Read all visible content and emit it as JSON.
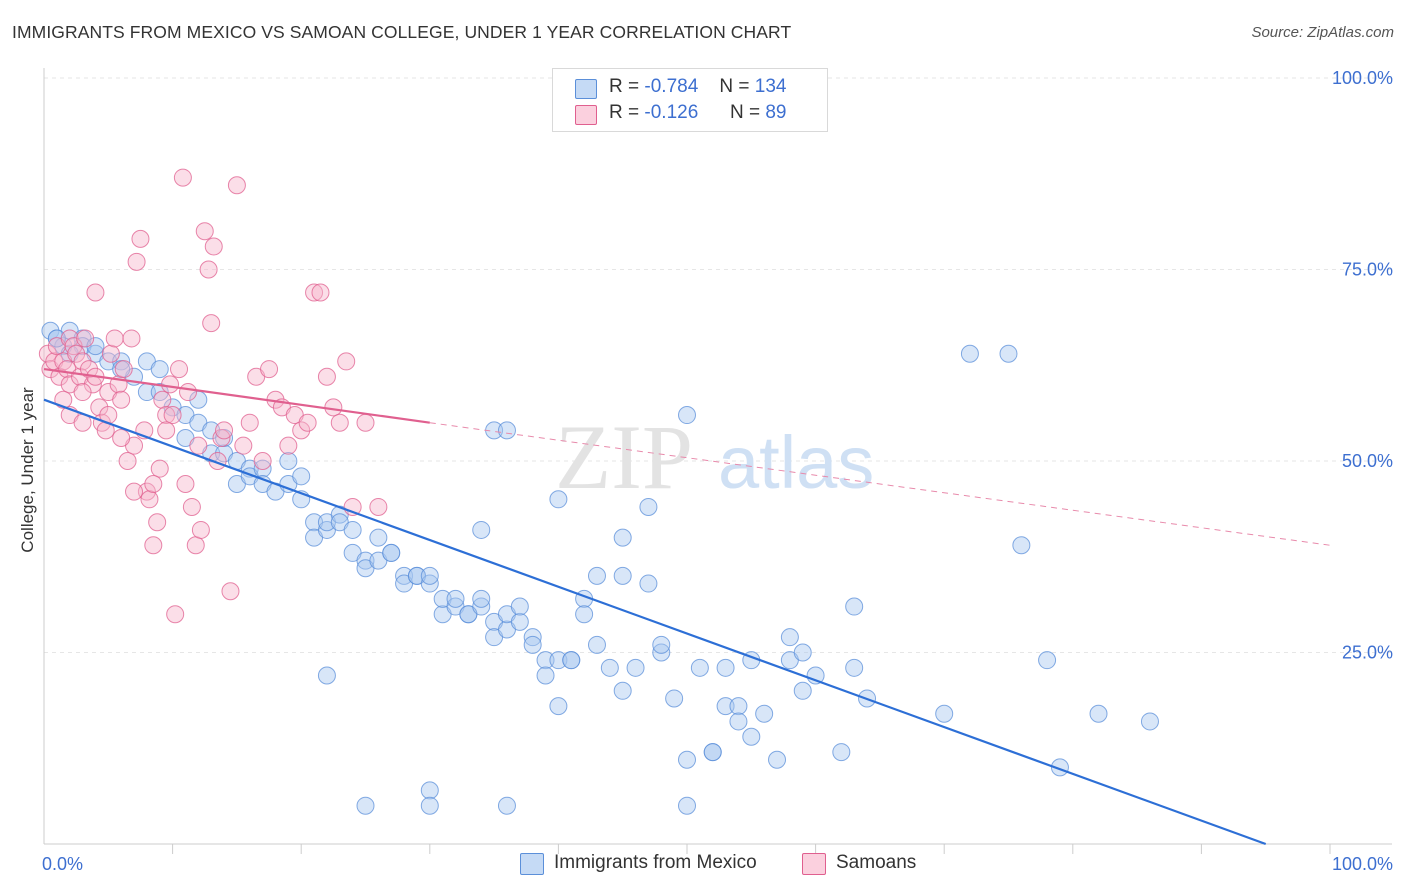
{
  "header": {
    "title": "IMMIGRANTS FROM MEXICO VS SAMOAN COLLEGE, UNDER 1 YEAR CORRELATION CHART",
    "source": "Source: ZipAtlas.com"
  },
  "watermark": {
    "zip": "ZIP",
    "atlas": "atlas"
  },
  "legend": {
    "rows": [
      {
        "r_label": "R =",
        "r_value": "-0.784",
        "n_label": "N =",
        "n_value": "134",
        "color": "#a8c8f0"
      },
      {
        "r_label": "R =",
        "r_value": "-0.126",
        "n_label": "N =",
        "n_value": "89",
        "color": "#f7b6cb"
      }
    ]
  },
  "chart_data": {
    "type": "scatter",
    "title": "IMMIGRANTS FROM MEXICO VS SAMOAN COLLEGE, UNDER 1 YEAR CORRELATION CHART",
    "xlabel": "",
    "ylabel": "College, Under 1 year",
    "xlim": [
      0,
      100
    ],
    "ylim": [
      0,
      100
    ],
    "x_tick_labels": [
      "0.0%",
      "100.0%"
    ],
    "y_tick_labels": [
      "25.0%",
      "50.0%",
      "75.0%",
      "100.0%"
    ],
    "y_ticks": [
      25,
      50,
      75,
      100
    ],
    "grid": true,
    "legend_position": "bottom",
    "series": [
      {
        "name": "Immigrants from Mexico",
        "color": "#5b8fd9",
        "fill": "#a8c8f0",
        "trend": {
          "x": [
            0,
            95
          ],
          "y": [
            58,
            0
          ],
          "dashed_to": null
        },
        "points": [
          [
            0.5,
            67
          ],
          [
            1,
            66
          ],
          [
            1.5,
            65
          ],
          [
            2,
            67
          ],
          [
            3,
            66
          ],
          [
            3,
            65
          ],
          [
            4,
            64
          ],
          [
            5,
            63
          ],
          [
            6,
            63
          ],
          [
            7,
            61
          ],
          [
            8,
            59
          ],
          [
            8,
            63
          ],
          [
            9,
            62
          ],
          [
            9,
            59
          ],
          [
            10,
            57
          ],
          [
            11,
            53
          ],
          [
            11,
            56
          ],
          [
            12,
            55
          ],
          [
            12,
            58
          ],
          [
            13,
            51
          ],
          [
            13,
            54
          ],
          [
            14,
            51
          ],
          [
            14,
            53
          ],
          [
            15,
            50
          ],
          [
            15,
            47
          ],
          [
            16,
            49
          ],
          [
            16,
            48
          ],
          [
            17,
            49
          ],
          [
            17,
            47
          ],
          [
            18,
            46
          ],
          [
            19,
            50
          ],
          [
            19,
            47
          ],
          [
            20,
            45
          ],
          [
            20,
            48
          ],
          [
            21,
            42
          ],
          [
            21,
            40
          ],
          [
            22,
            41
          ],
          [
            22,
            42
          ],
          [
            23,
            43
          ],
          [
            23,
            42
          ],
          [
            24,
            41
          ],
          [
            24,
            38
          ],
          [
            25,
            37
          ],
          [
            25,
            36
          ],
          [
            26,
            40
          ],
          [
            26,
            37
          ],
          [
            27,
            38
          ],
          [
            27,
            38
          ],
          [
            28,
            35
          ],
          [
            28,
            34
          ],
          [
            29,
            35
          ],
          [
            29,
            35
          ],
          [
            30,
            34
          ],
          [
            30,
            35
          ],
          [
            31,
            30
          ],
          [
            31,
            32
          ],
          [
            32,
            31
          ],
          [
            32,
            32
          ],
          [
            33,
            30
          ],
          [
            33,
            30
          ],
          [
            34,
            31
          ],
          [
            34,
            32
          ],
          [
            35,
            29
          ],
          [
            35,
            27
          ],
          [
            36,
            28
          ],
          [
            36,
            30
          ],
          [
            37,
            29
          ],
          [
            37,
            31
          ],
          [
            38,
            27
          ],
          [
            38,
            26
          ],
          [
            39,
            24
          ],
          [
            39,
            22
          ],
          [
            40,
            24
          ],
          [
            40,
            18
          ],
          [
            41,
            24
          ],
          [
            41,
            24
          ],
          [
            42,
            32
          ],
          [
            42,
            30
          ],
          [
            43,
            26
          ],
          [
            43,
            35
          ],
          [
            44,
            23
          ],
          [
            45,
            20
          ],
          [
            45,
            35
          ],
          [
            46,
            23
          ],
          [
            47,
            34
          ],
          [
            48,
            25
          ],
          [
            48,
            26
          ],
          [
            49,
            19
          ],
          [
            50,
            11
          ],
          [
            50,
            5
          ],
          [
            51,
            23
          ],
          [
            52,
            12
          ],
          [
            52,
            12
          ],
          [
            53,
            18
          ],
          [
            53,
            23
          ],
          [
            54,
            18
          ],
          [
            54,
            16
          ],
          [
            55,
            24
          ],
          [
            55,
            14
          ],
          [
            56,
            17
          ],
          [
            57,
            11
          ],
          [
            58,
            24
          ],
          [
            58,
            27
          ],
          [
            59,
            20
          ],
          [
            59,
            25
          ],
          [
            60,
            22
          ],
          [
            62,
            12
          ],
          [
            63,
            31
          ],
          [
            63,
            23
          ],
          [
            64,
            19
          ],
          [
            70,
            17
          ],
          [
            72,
            64
          ],
          [
            75,
            64
          ],
          [
            76,
            39
          ],
          [
            78,
            24
          ],
          [
            79,
            10
          ],
          [
            82,
            17
          ],
          [
            86,
            16
          ],
          [
            47,
            44
          ],
          [
            40,
            45
          ],
          [
            45,
            40
          ],
          [
            35,
            54
          ],
          [
            34,
            41
          ],
          [
            22,
            22
          ],
          [
            25,
            5
          ],
          [
            30,
            7
          ],
          [
            36,
            5
          ],
          [
            30,
            5
          ],
          [
            50,
            56
          ],
          [
            36,
            54
          ],
          [
            1,
            66
          ],
          [
            2,
            64
          ],
          [
            4,
            65
          ],
          [
            6,
            62
          ]
        ]
      },
      {
        "name": "Samoans",
        "color": "#e05f8f",
        "fill": "#f7b6cb",
        "trend": {
          "x": [
            0,
            30
          ],
          "y": [
            62,
            55
          ],
          "dashed_to": [
            100,
            39
          ]
        },
        "points": [
          [
            0.3,
            64
          ],
          [
            0.5,
            62
          ],
          [
            0.8,
            63
          ],
          [
            1,
            65
          ],
          [
            1.2,
            61
          ],
          [
            1.5,
            63
          ],
          [
            1.8,
            62
          ],
          [
            2,
            60
          ],
          [
            2,
            66
          ],
          [
            2.3,
            65
          ],
          [
            2.5,
            64
          ],
          [
            2.8,
            61
          ],
          [
            3,
            63
          ],
          [
            3.2,
            66
          ],
          [
            3.5,
            62
          ],
          [
            3.8,
            60
          ],
          [
            4,
            61
          ],
          [
            4.3,
            57
          ],
          [
            4.5,
            55
          ],
          [
            4.8,
            54
          ],
          [
            5,
            59
          ],
          [
            5.2,
            64
          ],
          [
            5.5,
            66
          ],
          [
            5.8,
            60
          ],
          [
            6,
            58
          ],
          [
            6.2,
            62
          ],
          [
            6.5,
            50
          ],
          [
            6.8,
            66
          ],
          [
            7,
            52
          ],
          [
            7.2,
            76
          ],
          [
            7.5,
            79
          ],
          [
            7.8,
            54
          ],
          [
            8,
            46
          ],
          [
            8.2,
            45
          ],
          [
            8.5,
            39
          ],
          [
            8.8,
            42
          ],
          [
            9,
            49
          ],
          [
            9.2,
            58
          ],
          [
            9.5,
            56
          ],
          [
            9.8,
            60
          ],
          [
            10,
            56
          ],
          [
            10.2,
            30
          ],
          [
            10.5,
            62
          ],
          [
            10.8,
            87
          ],
          [
            11,
            47
          ],
          [
            11.2,
            59
          ],
          [
            11.5,
            44
          ],
          [
            11.8,
            39
          ],
          [
            12,
            52
          ],
          [
            12.2,
            41
          ],
          [
            12.5,
            80
          ],
          [
            12.8,
            75
          ],
          [
            13,
            68
          ],
          [
            13.2,
            78
          ],
          [
            13.5,
            50
          ],
          [
            13.8,
            53
          ],
          [
            14,
            54
          ],
          [
            14.5,
            33
          ],
          [
            15,
            86
          ],
          [
            15.5,
            52
          ],
          [
            16,
            55
          ],
          [
            16.5,
            61
          ],
          [
            17,
            50
          ],
          [
            17.5,
            62
          ],
          [
            18,
            58
          ],
          [
            18.5,
            57
          ],
          [
            19,
            52
          ],
          [
            19.5,
            56
          ],
          [
            20,
            54
          ],
          [
            20.5,
            55
          ],
          [
            21,
            72
          ],
          [
            21.5,
            72
          ],
          [
            22,
            61
          ],
          [
            22.5,
            57
          ],
          [
            23,
            55
          ],
          [
            23.5,
            63
          ],
          [
            24,
            44
          ],
          [
            25,
            55
          ],
          [
            26,
            44
          ],
          [
            2,
            56
          ],
          [
            3,
            59
          ],
          [
            4,
            72
          ],
          [
            1.5,
            58
          ],
          [
            5,
            56
          ],
          [
            6,
            53
          ],
          [
            7,
            46
          ],
          [
            8.5,
            47
          ],
          [
            9.5,
            54
          ],
          [
            3,
            55
          ]
        ]
      }
    ]
  }
}
